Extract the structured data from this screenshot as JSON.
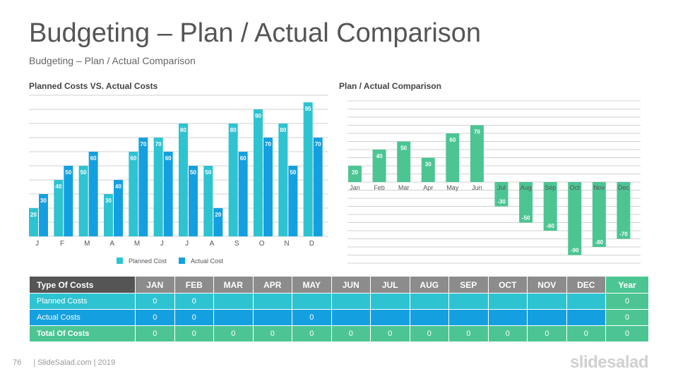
{
  "page": {
    "title": "Budgeting – Plan / Actual Comparison",
    "subtitle": "Budgeting – Plan / Actual Comparison",
    "page_number": "76",
    "footer_text": "| SlideSalad.com | 2019",
    "brand": "slidesalad"
  },
  "colors": {
    "planned": "#2ec3d1",
    "actual": "#14a0e0",
    "green": "#4cc593",
    "grid": "#d0d0d0",
    "axis_text": "#555555"
  },
  "chart_data": [
    {
      "type": "bar",
      "title": "Planned Costs VS. Actual Costs",
      "categories": [
        "J",
        "F",
        "M",
        "A",
        "M",
        "J",
        "J",
        "A",
        "S",
        "O",
        "N",
        "D"
      ],
      "series": [
        {
          "name": "Planned Cost",
          "values": [
            20,
            40,
            50,
            30,
            60,
            70,
            80,
            50,
            80,
            90,
            80,
            95
          ]
        },
        {
          "name": "Actual Cost",
          "values": [
            30,
            50,
            60,
            40,
            70,
            60,
            50,
            20,
            60,
            70,
            50,
            70
          ]
        }
      ],
      "ylim": [
        0,
        100
      ],
      "grid": true,
      "legend": "bottom"
    },
    {
      "type": "bar",
      "title": "Plan / Actual Comparison",
      "categories": [
        "Jan",
        "Feb",
        "Mar",
        "Apr",
        "May",
        "Jun",
        "Jul",
        "Aug",
        "Sep",
        "Oct",
        "Nov",
        "Dec"
      ],
      "values": [
        20,
        40,
        50,
        30,
        60,
        70,
        -30,
        -50,
        -60,
        -90,
        -80,
        -70
      ],
      "ylim": [
        -100,
        100
      ],
      "grid": true
    }
  ],
  "table": {
    "headers": [
      "Type Of Costs",
      "JAN",
      "FEB",
      "MAR",
      "APR",
      "MAY",
      "JUN",
      "JUL",
      "AUG",
      "SEP",
      "OCT",
      "NOV",
      "DEC",
      "Year"
    ],
    "rows": [
      {
        "label": "Planned Costs",
        "cells": [
          "0",
          "0",
          "",
          "",
          "",
          "",
          "",
          "",
          "",
          "",
          "",
          ""
        ],
        "year": "0"
      },
      {
        "label": "Actual Costs",
        "cells": [
          "0",
          "0",
          "",
          "",
          "0",
          "",
          "",
          "",
          "",
          "",
          "",
          ""
        ],
        "year": "0"
      },
      {
        "label": "Total Of Costs",
        "cells": [
          "0",
          "0",
          "0",
          "0",
          "0",
          "0",
          "0",
          "0",
          "0",
          "0",
          "0",
          "0"
        ],
        "year": "0"
      }
    ]
  }
}
